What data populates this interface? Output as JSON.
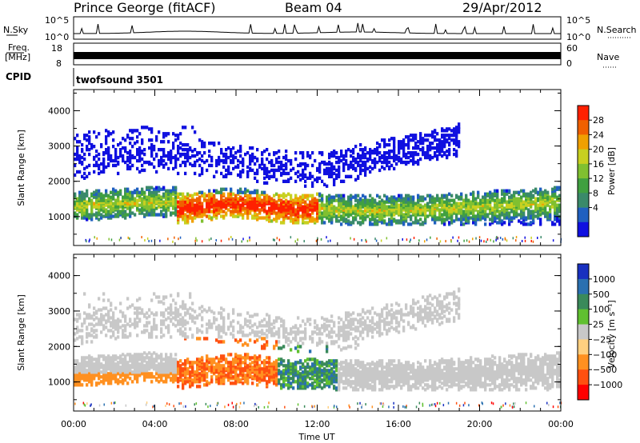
{
  "header": {
    "station": "Prince George (fitACF)",
    "beam": "Beam 04",
    "date": "29/Apr/2012"
  },
  "panels": {
    "nsky": {
      "label": "N.Sky",
      "ticks_left": [
        "10^5",
        "10^0"
      ],
      "right_label": "N.Search",
      "ticks_right": [
        "10^5",
        "10^0"
      ]
    },
    "freq": {
      "label_line1": "Freq.",
      "label_line2": "[MHz]",
      "ticks_left": [
        "18",
        "8"
      ],
      "right_label": "Nave",
      "ticks_right": [
        "60",
        "0"
      ]
    },
    "cpid": {
      "label": "CPID",
      "value": "twofsound 3501"
    }
  },
  "chart_data": [
    {
      "type": "heatmap",
      "name": "power",
      "ylabel": "Slant Range [km]",
      "ylim": [
        180,
        4600
      ],
      "yticks": [
        "1000",
        "2000",
        "3000",
        "4000"
      ],
      "xlim": [
        "00:00",
        "24:00"
      ],
      "colorbar": {
        "label": "Power [dB]",
        "ticks": [
          "4",
          "8",
          "12",
          "16",
          "20",
          "24",
          "28"
        ],
        "colors": [
          "#1010e0",
          "#2060c0",
          "#3a8a6a",
          "#40a040",
          "#80c030",
          "#c8d020",
          "#f0a000",
          "#f06000",
          "#ff2000"
        ]
      }
    },
    {
      "type": "heatmap",
      "name": "velocity",
      "ylabel": "Slant Range [km]",
      "ylim": [
        180,
        4600
      ],
      "yticks": [
        "1000",
        "2000",
        "3000",
        "4000"
      ],
      "xlim": [
        "00:00",
        "24:00"
      ],
      "colorbar": {
        "label": "Velocity [m s⁻¹]",
        "ticks": [
          "1000",
          "500",
          "100",
          "25",
          "−25",
          "−100",
          "−500",
          "−1000"
        ],
        "colors": [
          "#1830c0",
          "#2a70b0",
          "#3a8a5a",
          "#60c030",
          "#c8c8c8",
          "#ffd080",
          "#ff9020",
          "#ff5010",
          "#ff0000"
        ]
      }
    }
  ],
  "xaxis": {
    "label": "Time UT",
    "ticks": [
      "00:00",
      "04:00",
      "08:00",
      "12:00",
      "16:00",
      "20:00",
      "00:00"
    ]
  }
}
